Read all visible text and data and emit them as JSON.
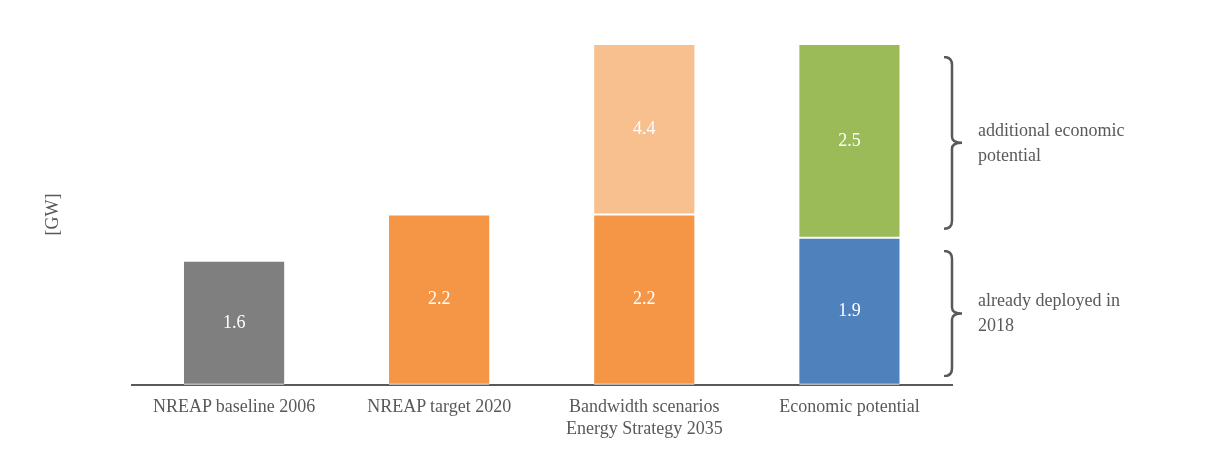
{
  "chart_data": {
    "type": "bar",
    "stacked": true,
    "ylabel": "[GW]",
    "categories": [
      "NREAP baseline 2006",
      "NREAP target 2020",
      "Bandwidth scenarios Energy Strategy 2035",
      "Economic potential"
    ],
    "series": [
      {
        "colors": [
          "#7f7f7f",
          "#f59647",
          "#f59647",
          "#4f81bd"
        ],
        "values": [
          1.6,
          2.2,
          2.2,
          1.9
        ],
        "value_labels": [
          "1.6",
          "2.2",
          "2.2",
          "1.9"
        ]
      },
      {
        "colors": [
          "#f8bf8f",
          "#f8bf8f",
          "#f8bf8f",
          "#9bbb59"
        ],
        "values": [
          null,
          null,
          2.2,
          2.5
        ],
        "value_labels": [
          null,
          null,
          null,
          "2.5"
        ]
      }
    ],
    "annotations": [
      "4.4",
      "additional economic potential",
      "already deployed in 2018"
    ],
    "legend": false,
    "grid": false
  }
}
